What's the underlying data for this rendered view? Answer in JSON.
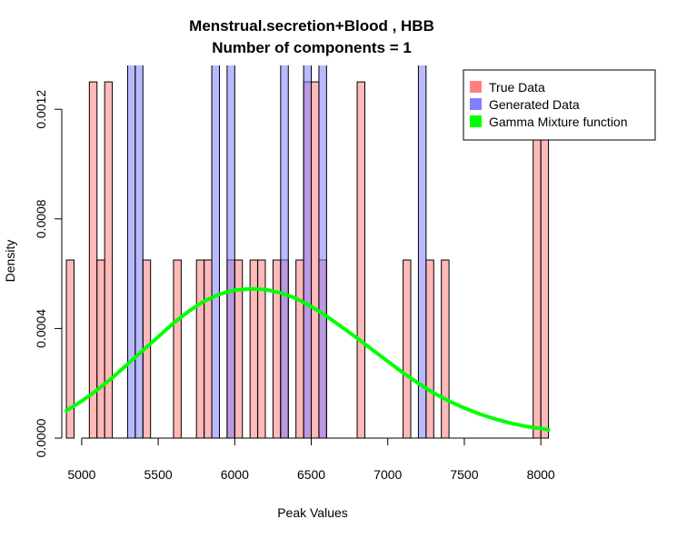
{
  "chart_data": {
    "type": "bar",
    "title_lines": [
      "Menstrual.secretion+Blood , HBB",
      "Number of components =  1"
    ],
    "xlabel": "Peak Values",
    "ylabel": "Density",
    "xlim": [
      4870,
      8100
    ],
    "ylim": [
      0,
      0.00136
    ],
    "x_ticks": [
      5000,
      5500,
      6000,
      6500,
      7000,
      7500,
      8000
    ],
    "x_tick_labels": [
      "5000",
      "5500",
      "6000",
      "6500",
      "7000",
      "7500",
      "8000"
    ],
    "y_ticks": [
      0,
      0.0004,
      0.0008,
      0.0012
    ],
    "y_tick_labels": [
      "0.0000",
      "0.0004",
      "0.0008",
      "0.0012"
    ],
    "bin_width": 50,
    "grid": false,
    "legend_position": "top-right",
    "legend": [
      {
        "label": "True Data",
        "color": "#FF8080"
      },
      {
        "label": "Generated Data",
        "color": "#8080FF"
      },
      {
        "label": "Gamma Mixture function",
        "color": "#00FF00"
      }
    ],
    "series": [
      {
        "name": "True Data",
        "color": "#FF8080",
        "bins": [
          {
            "x": 4900,
            "density": 0.00065
          },
          {
            "x": 5050,
            "density": 0.0013
          },
          {
            "x": 5100,
            "density": 0.00065
          },
          {
            "x": 5150,
            "density": 0.0013
          },
          {
            "x": 5400,
            "density": 0.00065
          },
          {
            "x": 5600,
            "density": 0.00065
          },
          {
            "x": 5750,
            "density": 0.00065
          },
          {
            "x": 5800,
            "density": 0.00065
          },
          {
            "x": 5950,
            "density": 0.00065
          },
          {
            "x": 6000,
            "density": 0.00065
          },
          {
            "x": 6100,
            "density": 0.00065
          },
          {
            "x": 6150,
            "density": 0.00065
          },
          {
            "x": 6250,
            "density": 0.00065
          },
          {
            "x": 6300,
            "density": 0.00065
          },
          {
            "x": 6400,
            "density": 0.00065
          },
          {
            "x": 6450,
            "density": 0.0013
          },
          {
            "x": 6500,
            "density": 0.0013
          },
          {
            "x": 6550,
            "density": 0.00065
          },
          {
            "x": 6800,
            "density": 0.0013
          },
          {
            "x": 7100,
            "density": 0.00065
          },
          {
            "x": 7250,
            "density": 0.00065
          },
          {
            "x": 7350,
            "density": 0.00065
          },
          {
            "x": 7950,
            "density": 0.0013
          },
          {
            "x": 8000,
            "density": 0.0013
          }
        ]
      },
      {
        "name": "Generated Data",
        "color": "#8080FF",
        "bins": [
          {
            "x": 5300,
            "density": 0.0014
          },
          {
            "x": 5350,
            "density": 0.0014
          },
          {
            "x": 5850,
            "density": 0.0014
          },
          {
            "x": 5950,
            "density": 0.0014
          },
          {
            "x": 6300,
            "density": 0.0014
          },
          {
            "x": 6450,
            "density": 0.0014
          },
          {
            "x": 6550,
            "density": 0.0014
          },
          {
            "x": 7200,
            "density": 0.0014
          }
        ]
      }
    ],
    "curve": {
      "name": "Gamma Mixture function",
      "color": "#00FF00",
      "points": [
        [
          4900,
          0.0001
        ],
        [
          5000,
          0.000135
        ],
        [
          5100,
          0.000175
        ],
        [
          5200,
          0.00022
        ],
        [
          5300,
          0.00027
        ],
        [
          5400,
          0.00032
        ],
        [
          5500,
          0.00037
        ],
        [
          5600,
          0.00042
        ],
        [
          5700,
          0.000463
        ],
        [
          5800,
          0.0005
        ],
        [
          5900,
          0.000525
        ],
        [
          6000,
          0.00054
        ],
        [
          6100,
          0.000545
        ],
        [
          6200,
          0.000542
        ],
        [
          6300,
          0.00053
        ],
        [
          6400,
          0.00051
        ],
        [
          6500,
          0.00048
        ],
        [
          6600,
          0.000445
        ],
        [
          6700,
          0.000405
        ],
        [
          6800,
          0.000365
        ],
        [
          6900,
          0.000322
        ],
        [
          7000,
          0.00028
        ],
        [
          7100,
          0.000238
        ],
        [
          7200,
          0.0002
        ],
        [
          7300,
          0.000165
        ],
        [
          7400,
          0.000135
        ],
        [
          7500,
          0.00011
        ],
        [
          7600,
          8.8e-05
        ],
        [
          7700,
          7e-05
        ],
        [
          7800,
          5.5e-05
        ],
        [
          7900,
          4.3e-05
        ],
        [
          8000,
          3.5e-05
        ],
        [
          8050,
          3e-05
        ]
      ]
    }
  }
}
